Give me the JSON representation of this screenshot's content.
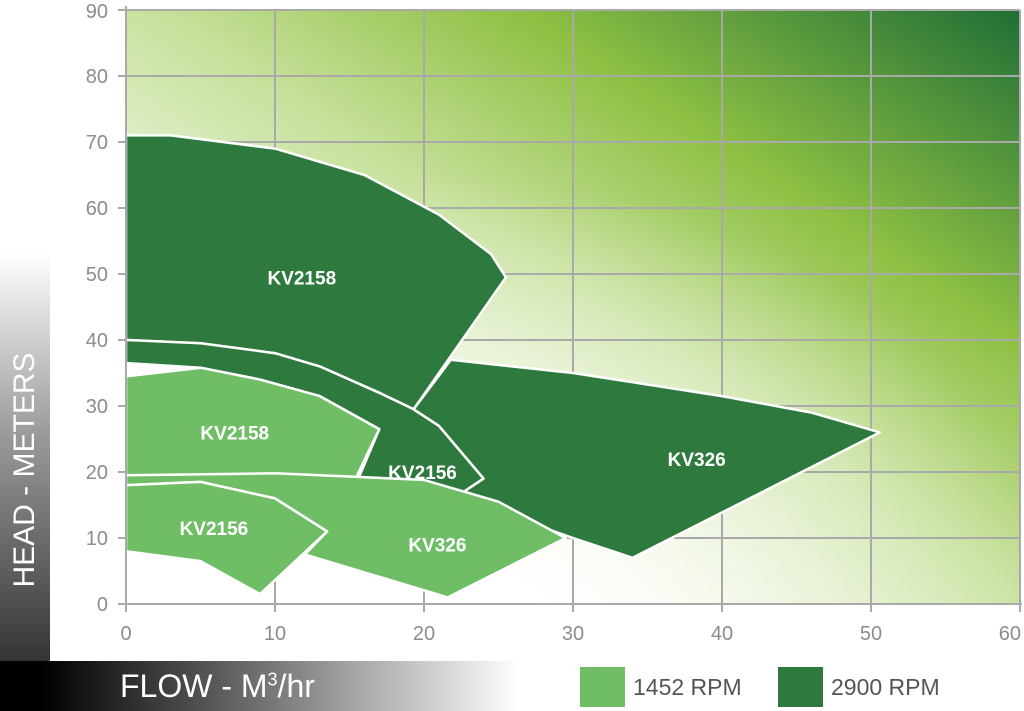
{
  "chart_data": {
    "type": "area",
    "title": "",
    "xlabel": "FLOW - M",
    "xlabel_sup": "3",
    "xlabel_suffix": "/hr",
    "ylabel": "HEAD - METERS",
    "xlim": [
      0,
      60
    ],
    "ylim": [
      0,
      90
    ],
    "xticks": [
      0,
      10,
      20,
      30,
      40,
      50,
      60
    ],
    "yticks": [
      0,
      10,
      20,
      30,
      40,
      50,
      60,
      70,
      80,
      90
    ],
    "grid": true,
    "legend_position": "bottom-right",
    "legend": [
      {
        "label": "1452 RPM",
        "color": "#6fbe66"
      },
      {
        "label": "2900 RPM",
        "color": "#2e7a3e"
      }
    ],
    "series": [
      {
        "group": "2900 RPM",
        "label": "KV2158",
        "color": "#2e7a3e",
        "label_at": [
          11.8,
          49.5
        ],
        "outline": [
          [
            0,
            40
          ],
          [
            5,
            39.5
          ],
          [
            10,
            38
          ],
          [
            13,
            36
          ],
          [
            17,
            32
          ],
          [
            19.3,
            29.5
          ],
          [
            25.5,
            49.5
          ],
          [
            24.5,
            53
          ],
          [
            21,
            59
          ],
          [
            16,
            65
          ],
          [
            10,
            69
          ],
          [
            3,
            71
          ],
          [
            0,
            71
          ]
        ]
      },
      {
        "group": "2900 RPM",
        "label": "KV2156",
        "color": "#2e7a3e",
        "label_at": [
          19.9,
          20
        ],
        "outline": [
          [
            15.5,
            18.5
          ],
          [
            17,
            26.5
          ],
          [
            13,
            31.5
          ],
          [
            9,
            34
          ],
          [
            5,
            35.8
          ],
          [
            0,
            36.5
          ],
          [
            0,
            40
          ],
          [
            5,
            39.5
          ],
          [
            10,
            38
          ],
          [
            13,
            36
          ],
          [
            17,
            32
          ],
          [
            19.3,
            29.5
          ],
          [
            21,
            27
          ],
          [
            24,
            19
          ],
          [
            22,
            16
          ],
          [
            22,
            17
          ],
          [
            16,
            18.5
          ]
        ]
      },
      {
        "group": "2900 RPM",
        "label": "KV326",
        "color": "#2e7a3e",
        "label_at": [
          38.3,
          22
        ],
        "outline": [
          [
            19.3,
            29.5
          ],
          [
            21.8,
            37
          ],
          [
            30,
            35
          ],
          [
            40,
            31.5
          ],
          [
            46,
            29
          ],
          [
            50.6,
            26
          ],
          [
            34,
            7
          ],
          [
            30,
            10
          ],
          [
            25,
            14
          ],
          [
            22,
            16
          ],
          [
            24,
            19
          ],
          [
            21,
            27
          ]
        ]
      },
      {
        "group": "1452 RPM",
        "label": "KV2158",
        "color": "#6fbe66",
        "label_at": [
          7.3,
          26
        ],
        "outline": [
          [
            0,
            19.5
          ],
          [
            15.3,
            18.5
          ],
          [
            17,
            26.5
          ],
          [
            13,
            31.5
          ],
          [
            9,
            34
          ],
          [
            5,
            35.8
          ],
          [
            0,
            34.5
          ]
        ]
      },
      {
        "group": "1452 RPM",
        "label": "KV326",
        "color": "#6fbe66",
        "label_at": [
          20.9,
          9
        ],
        "outline": [
          [
            0,
            19.5
          ],
          [
            10,
            19.8
          ],
          [
            20,
            18.8
          ],
          [
            25,
            15.5
          ],
          [
            29.5,
            10
          ],
          [
            21.6,
            1
          ],
          [
            12,
            7.5
          ],
          [
            13.5,
            11
          ],
          [
            10,
            16
          ],
          [
            5,
            18.5
          ],
          [
            0,
            18
          ]
        ]
      },
      {
        "group": "1452 RPM",
        "label": "KV2156",
        "color": "#6fbe66",
        "label_at": [
          5.9,
          11.5
        ],
        "outline": [
          [
            0,
            18
          ],
          [
            5,
            18.5
          ],
          [
            10,
            16
          ],
          [
            13.5,
            11
          ],
          [
            9,
            1.5
          ],
          [
            5,
            6.5
          ],
          [
            0,
            8
          ]
        ]
      }
    ]
  }
}
